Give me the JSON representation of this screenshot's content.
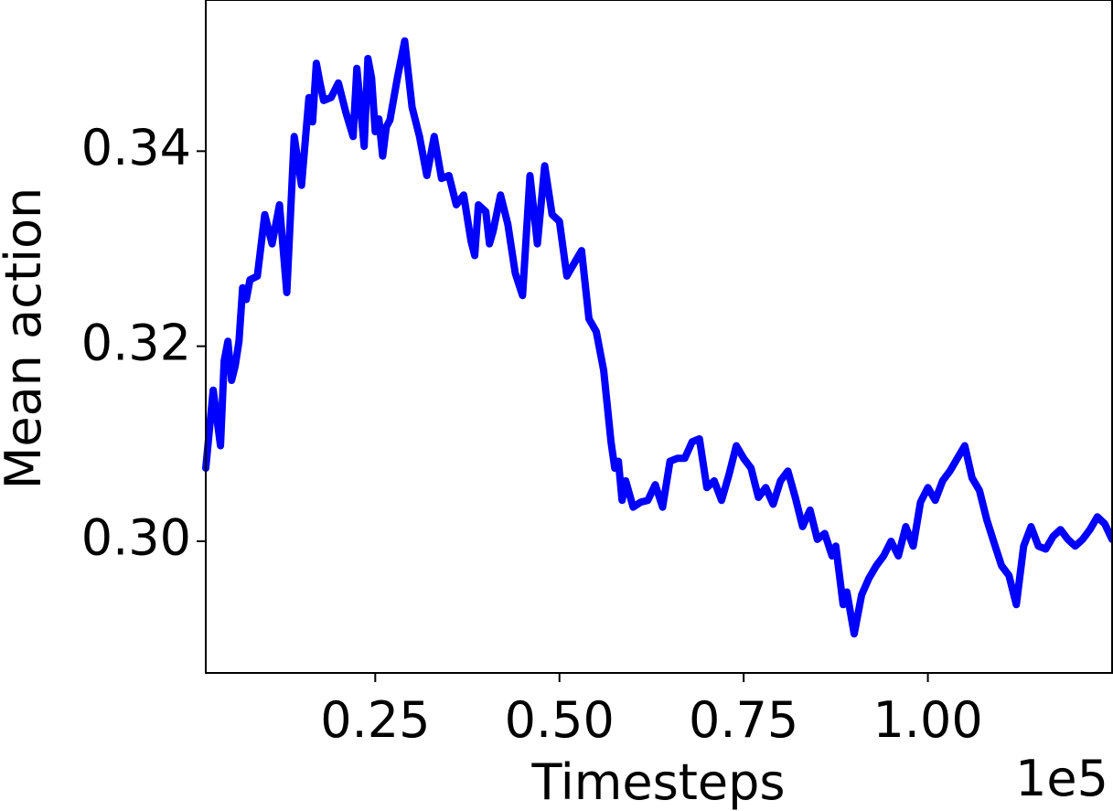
{
  "chart_data": {
    "type": "line",
    "title": "",
    "xlabel": "Timesteps",
    "ylabel": "Mean action",
    "x_offset_label": "1e5",
    "xlim": [
      0.02,
      1.25
    ],
    "ylim": [
      0.2865,
      0.3555
    ],
    "xticks": [
      0.25,
      0.5,
      0.75,
      1.0
    ],
    "xtick_labels": [
      "0.25",
      "0.50",
      "0.75",
      "1.00"
    ],
    "yticks": [
      0.3,
      0.32,
      0.34
    ],
    "ytick_labels": [
      "0.30",
      "0.32",
      "0.34"
    ],
    "grid": false,
    "legend": false,
    "series": [
      {
        "color": "#0000ff",
        "x": [
          0.02,
          0.03,
          0.04,
          0.045,
          0.05,
          0.055,
          0.06,
          0.065,
          0.07,
          0.075,
          0.08,
          0.09,
          0.1,
          0.11,
          0.12,
          0.13,
          0.14,
          0.15,
          0.16,
          0.165,
          0.17,
          0.175,
          0.18,
          0.19,
          0.2,
          0.21,
          0.22,
          0.225,
          0.23,
          0.235,
          0.24,
          0.245,
          0.25,
          0.255,
          0.26,
          0.265,
          0.27,
          0.28,
          0.29,
          0.3,
          0.31,
          0.32,
          0.33,
          0.34,
          0.35,
          0.36,
          0.37,
          0.38,
          0.385,
          0.39,
          0.4,
          0.405,
          0.41,
          0.42,
          0.43,
          0.44,
          0.45,
          0.46,
          0.47,
          0.48,
          0.49,
          0.5,
          0.51,
          0.52,
          0.53,
          0.54,
          0.55,
          0.56,
          0.57,
          0.575,
          0.58,
          0.585,
          0.59,
          0.6,
          0.61,
          0.62,
          0.63,
          0.64,
          0.65,
          0.66,
          0.67,
          0.68,
          0.69,
          0.7,
          0.71,
          0.72,
          0.73,
          0.74,
          0.75,
          0.76,
          0.77,
          0.78,
          0.79,
          0.8,
          0.81,
          0.82,
          0.83,
          0.84,
          0.85,
          0.86,
          0.87,
          0.875,
          0.88,
          0.885,
          0.89,
          0.9,
          0.91,
          0.92,
          0.93,
          0.94,
          0.95,
          0.96,
          0.97,
          0.98,
          0.99,
          1.0,
          1.01,
          1.02,
          1.03,
          1.04,
          1.05,
          1.06,
          1.07,
          1.08,
          1.09,
          1.1,
          1.11,
          1.12,
          1.13,
          1.14,
          1.15,
          1.16,
          1.17,
          1.18,
          1.19,
          1.2,
          1.21,
          1.22,
          1.23,
          1.24,
          1.25
        ],
        "y": [
          0.3075,
          0.3155,
          0.3098,
          0.3185,
          0.3205,
          0.3165,
          0.318,
          0.3205,
          0.326,
          0.3248,
          0.3268,
          0.3272,
          0.3335,
          0.3305,
          0.3345,
          0.3255,
          0.3415,
          0.3365,
          0.3455,
          0.343,
          0.349,
          0.347,
          0.3452,
          0.3455,
          0.347,
          0.344,
          0.3415,
          0.3485,
          0.3445,
          0.3405,
          0.3495,
          0.3475,
          0.342,
          0.3433,
          0.3395,
          0.3425,
          0.3432,
          0.3475,
          0.3513,
          0.3445,
          0.3415,
          0.3375,
          0.3415,
          0.3372,
          0.3375,
          0.3345,
          0.3355,
          0.3308,
          0.3293,
          0.3345,
          0.3338,
          0.3305,
          0.3318,
          0.3355,
          0.3325,
          0.3275,
          0.3252,
          0.3375,
          0.3305,
          0.3385,
          0.3335,
          0.3328,
          0.3272,
          0.3285,
          0.3298,
          0.3228,
          0.3215,
          0.3175,
          0.3102,
          0.3075,
          0.3082,
          0.3042,
          0.3062,
          0.3035,
          0.304,
          0.3042,
          0.3058,
          0.3035,
          0.3082,
          0.3085,
          0.3085,
          0.3102,
          0.3105,
          0.3055,
          0.3062,
          0.3042,
          0.3068,
          0.3098,
          0.3085,
          0.3075,
          0.3045,
          0.3055,
          0.3038,
          0.3062,
          0.3072,
          0.3045,
          0.3015,
          0.3032,
          0.3002,
          0.3008,
          0.2985,
          0.2995,
          0.2965,
          0.2935,
          0.2948,
          0.2905,
          0.2945,
          0.2962,
          0.2975,
          0.2985,
          0.3,
          0.2985,
          0.3015,
          0.2995,
          0.304,
          0.3055,
          0.3042,
          0.3062,
          0.3072,
          0.3085,
          0.3098,
          0.3065,
          0.3052,
          0.3022,
          0.2998,
          0.2975,
          0.2965,
          0.2935,
          0.2995,
          0.3015,
          0.2995,
          0.2992,
          0.3005,
          0.3012,
          0.3002,
          0.2995,
          0.3002,
          0.3012,
          0.3025,
          0.3018,
          0.3002
        ]
      }
    ]
  }
}
